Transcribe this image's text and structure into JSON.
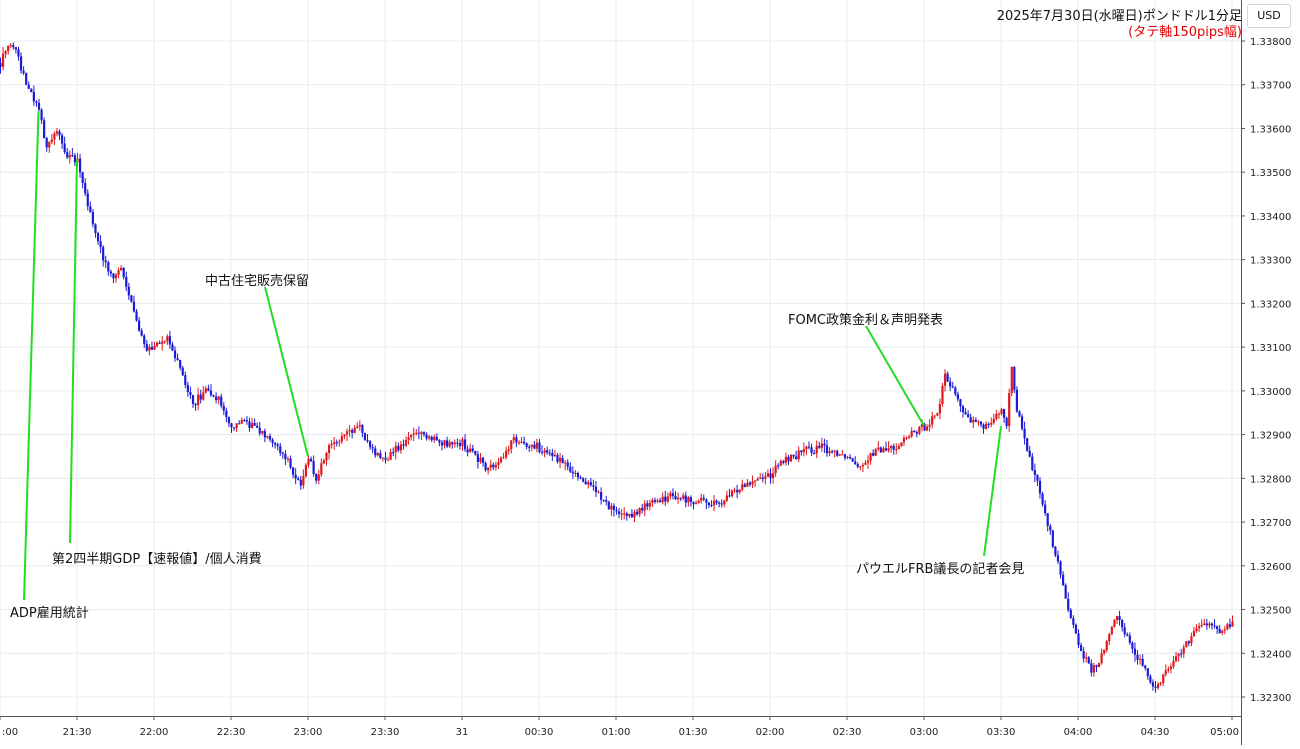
{
  "header": {
    "title": "2025年7月30日(水曜日)ポンドドル1分足",
    "subtitle": "(タテ軸150pips幅)",
    "currency": "USD"
  },
  "colors": {
    "up": "#e0181b",
    "down": "#1b1bd6",
    "annotation_line": "#22dd22",
    "grid": "#e6ecf2"
  },
  "chart_data": {
    "type": "candlestick",
    "title": "2025年7月30日(水曜日)ポンドドル1分足",
    "y_ticks": [
      "1.33800",
      "1.33700",
      "1.33600",
      "1.33500",
      "1.33400",
      "1.33300",
      "1.33200",
      "1.33100",
      "1.33000",
      "1.32900",
      "1.32800",
      "1.32700",
      "1.32600",
      "1.32500",
      "1.32400",
      "1.32300"
    ],
    "x_ticks": [
      ":00",
      "21:30",
      "22:00",
      "22:30",
      "23:00",
      "23:30",
      "31",
      "00:30",
      "01:00",
      "01:30",
      "02:00",
      "02:30",
      "03:00",
      "03:30",
      "04:00",
      "04:30",
      "05:00"
    ],
    "ylim": [
      1.3227,
      1.33815
    ],
    "grid": true,
    "price_path": [
      [
        "21:00",
        1.3375
      ],
      [
        "21:03",
        1.3379
      ],
      [
        "21:06",
        1.3378
      ],
      [
        "21:10",
        1.337
      ],
      [
        "21:15",
        1.3364
      ],
      [
        "21:18",
        1.3355
      ],
      [
        "21:22",
        1.336
      ],
      [
        "21:26",
        1.3353
      ],
      [
        "21:30",
        1.3353
      ],
      [
        "21:33",
        1.3345
      ],
      [
        "21:36",
        1.3338
      ],
      [
        "21:40",
        1.333
      ],
      [
        "21:44",
        1.3325
      ],
      [
        "21:47",
        1.3328
      ],
      [
        "21:52",
        1.3318
      ],
      [
        "21:56",
        1.331
      ],
      [
        "22:00",
        1.331
      ],
      [
        "22:05",
        1.3312
      ],
      [
        "22:10",
        1.3305
      ],
      [
        "22:15",
        1.3297
      ],
      [
        "22:20",
        1.33
      ],
      [
        "22:25",
        1.3298
      ],
      [
        "22:30",
        1.3292
      ],
      [
        "22:35",
        1.3293
      ],
      [
        "22:42",
        1.329
      ],
      [
        "22:50",
        1.3286
      ],
      [
        "22:57",
        1.3278
      ],
      [
        "23:00",
        1.3285
      ],
      [
        "23:03",
        1.328
      ],
      [
        "23:08",
        1.3287
      ],
      [
        "23:15",
        1.329
      ],
      [
        "23:20",
        1.3292
      ],
      [
        "23:25",
        1.3286
      ],
      [
        "23:30",
        1.3284
      ],
      [
        "23:38",
        1.3289
      ],
      [
        "23:45",
        1.329
      ],
      [
        "23:52",
        1.3288
      ],
      [
        "00:00",
        1.3288
      ],
      [
        "00:05",
        1.3285
      ],
      [
        "00:10",
        1.3282
      ],
      [
        "00:15",
        1.3284
      ],
      [
        "00:20",
        1.3289
      ],
      [
        "00:25",
        1.3288
      ],
      [
        "00:30",
        1.3287
      ],
      [
        "00:40",
        1.3283
      ],
      [
        "00:50",
        1.3278
      ],
      [
        "01:00",
        1.3272
      ],
      [
        "01:05",
        1.3271
      ],
      [
        "01:12",
        1.3274
      ],
      [
        "01:20",
        1.3276
      ],
      [
        "01:30",
        1.3275
      ],
      [
        "01:40",
        1.3274
      ],
      [
        "01:50",
        1.3279
      ],
      [
        "02:00",
        1.3281
      ],
      [
        "02:05",
        1.3284
      ],
      [
        "02:12",
        1.3286
      ],
      [
        "02:20",
        1.3287
      ],
      [
        "02:30",
        1.3285
      ],
      [
        "02:35",
        1.3283
      ],
      [
        "02:40",
        1.3286
      ],
      [
        "02:48",
        1.3287
      ],
      [
        "02:55",
        1.329
      ],
      [
        "03:00",
        1.3292
      ],
      [
        "03:05",
        1.3295
      ],
      [
        "03:08",
        1.3303
      ],
      [
        "03:11",
        1.3301
      ],
      [
        "03:14",
        1.3296
      ],
      [
        "03:18",
        1.3293
      ],
      [
        "03:23",
        1.3292
      ],
      [
        "03:27",
        1.3294
      ],
      [
        "03:30",
        1.3296
      ],
      [
        "03:32",
        1.3291
      ],
      [
        "03:34",
        1.3306
      ],
      [
        "03:36",
        1.3296
      ],
      [
        "03:40",
        1.3286
      ],
      [
        "03:45",
        1.3277
      ],
      [
        "03:50",
        1.3265
      ],
      [
        "03:55",
        1.3253
      ],
      [
        "04:00",
        1.3242
      ],
      [
        "04:05",
        1.3236
      ],
      [
        "04:08",
        1.3238
      ],
      [
        "04:12",
        1.3244
      ],
      [
        "04:15",
        1.3249
      ],
      [
        "04:18",
        1.3245
      ],
      [
        "04:22",
        1.324
      ],
      [
        "04:26",
        1.3236
      ],
      [
        "04:30",
        1.3232
      ],
      [
        "04:34",
        1.3236
      ],
      [
        "04:38",
        1.3239
      ],
      [
        "04:42",
        1.3242
      ],
      [
        "04:48",
        1.3247
      ],
      [
        "04:55",
        1.3245
      ],
      [
        "05:00",
        1.3247
      ]
    ],
    "annotations": [
      {
        "text": "ADP雇用統計",
        "time": "21:15"
      },
      {
        "text": "第2四半期GDP【速報値】/個人消費",
        "time": "21:30"
      },
      {
        "text": "中古住宅販売保留",
        "time": "23:00"
      },
      {
        "text": "FOMC政策金利＆声明発表",
        "time": "03:00"
      },
      {
        "text": "パウエルFRB議長の記者会見",
        "time": "03:30"
      }
    ]
  }
}
